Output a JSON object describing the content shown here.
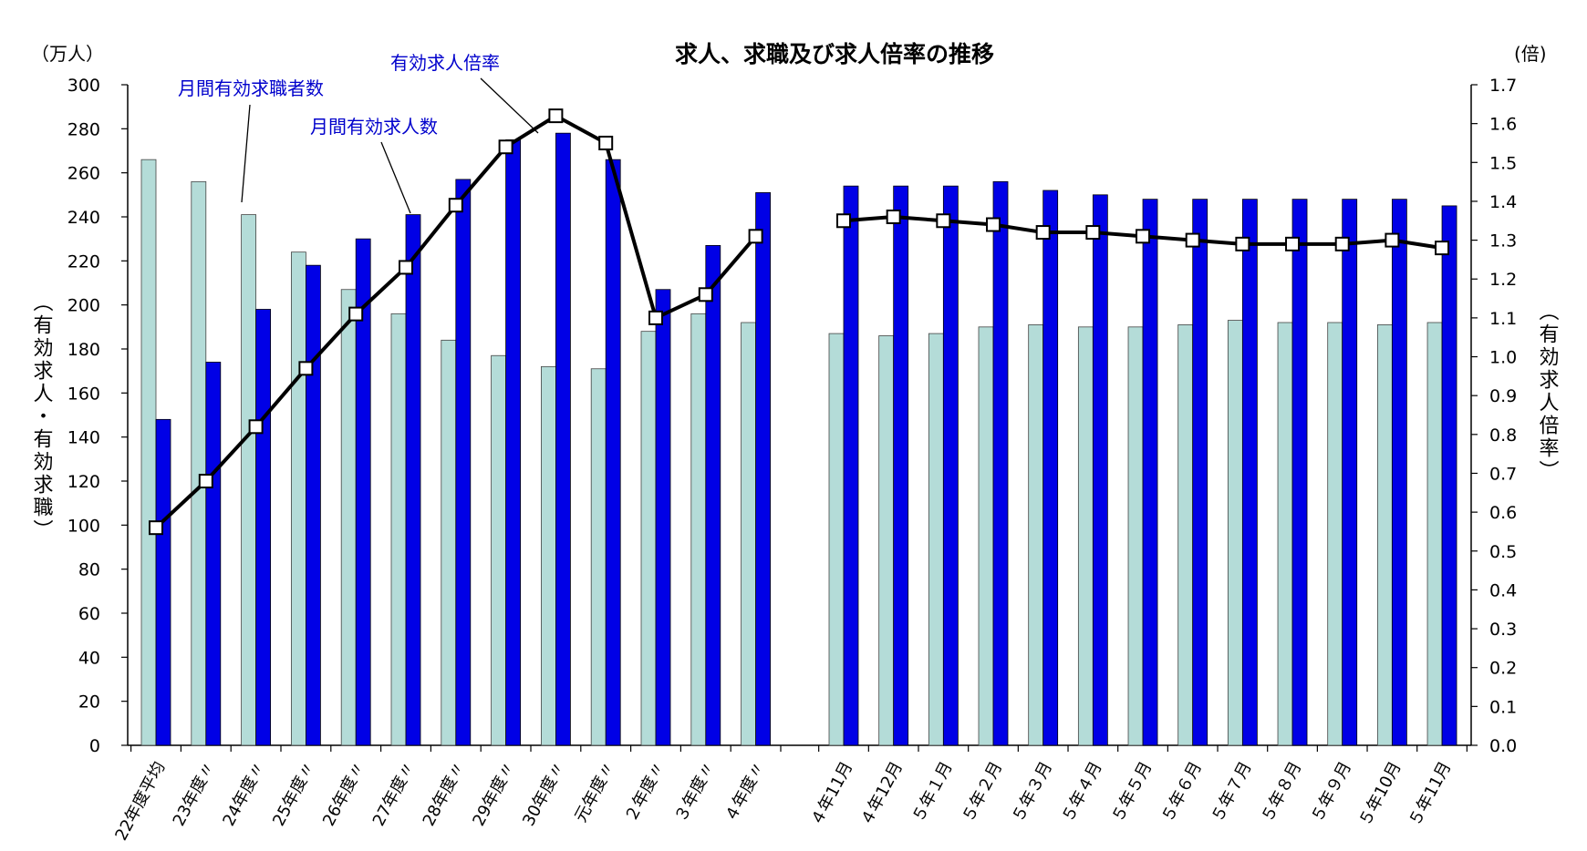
{
  "chart_data": {
    "type": "bar",
    "title": "求人、求職及び求人倍率の推移",
    "left_unit": "（万人）",
    "right_unit": "(倍)",
    "ylabel_left": "︵有効求人・有効求職︶",
    "ylabel_right": "︵有効求人倍率︶",
    "ylim_left": [
      0,
      300
    ],
    "ylim_right": [
      0.0,
      1.7
    ],
    "left_ticks": [
      "0",
      "20",
      "40",
      "60",
      "80",
      "100",
      "120",
      "140",
      "160",
      "180",
      "200",
      "220",
      "240",
      "260",
      "280",
      "300"
    ],
    "right_ticks": [
      "0.0",
      "0.1",
      "0.2",
      "0.3",
      "0.4",
      "0.5",
      "0.6",
      "0.7",
      "0.8",
      "0.9",
      "1.0",
      "1.1",
      "1.2",
      "1.3",
      "1.4",
      "1.5",
      "1.6",
      "1.7"
    ],
    "categories": [
      "22年度平均",
      "23年度〃",
      "24年度〃",
      "25年度〃",
      "26年度〃",
      "27年度〃",
      "28年度〃",
      "29年度〃",
      "30年度〃",
      "元年度〃",
      "２年度〃",
      "３年度〃",
      "４年度〃",
      "４年11月",
      "４年12月",
      "５年１月",
      "５年２月",
      "５年３月",
      "５年４月",
      "５年５月",
      "５年６月",
      "５年７月",
      "５年８月",
      "５年９月",
      "５年10月",
      "５年11月"
    ],
    "series": [
      {
        "name": "月間有効求職者数",
        "color": "#b4dcd8",
        "values": [
          266,
          256,
          241,
          224,
          207,
          196,
          184,
          177,
          172,
          171,
          188,
          196,
          192,
          187,
          186,
          187,
          190,
          191,
          190,
          190,
          191,
          193,
          192,
          192,
          191,
          192
        ]
      },
      {
        "name": "月間有効求人数",
        "color": "#0000e6",
        "values": [
          148,
          174,
          198,
          218,
          230,
          241,
          257,
          275,
          278,
          266,
          207,
          227,
          251,
          254,
          254,
          254,
          256,
          252,
          250,
          248,
          248,
          248,
          248,
          248,
          248,
          245
        ]
      },
      {
        "name": "有効求人倍率",
        "color": "#000000",
        "axis": "right",
        "values": [
          0.56,
          0.68,
          0.82,
          0.97,
          1.11,
          1.23,
          1.39,
          1.54,
          1.62,
          1.55,
          1.1,
          1.16,
          1.31,
          1.35,
          1.36,
          1.35,
          1.34,
          1.32,
          1.32,
          1.31,
          1.3,
          1.29,
          1.29,
          1.29,
          1.3,
          1.28
        ]
      }
    ],
    "annotations": {
      "jobseekers": "月間有効求職者数",
      "openings": "月間有効求人数",
      "ratio": "有効求人倍率"
    },
    "legend": "annotations"
  }
}
